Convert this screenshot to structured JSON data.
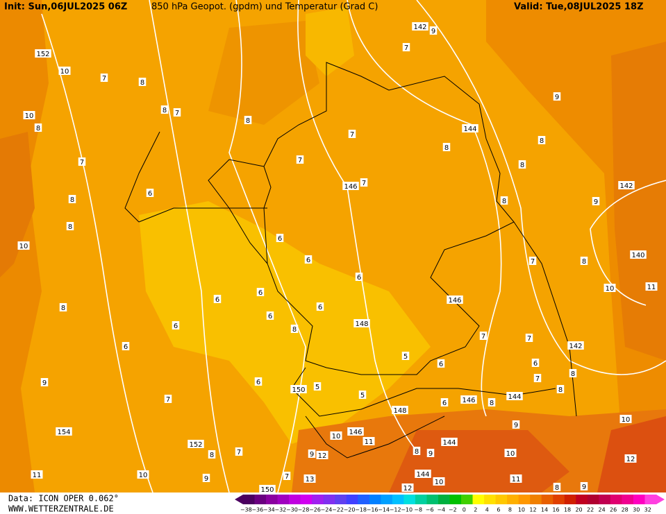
{
  "header": {
    "init": "Init: Sun,06JUL2025 06Z",
    "title": "850 hPa Geopot. (gpdm) und Temperatur (Grad C)",
    "valid": "Valid: Tue,08JUL2025 18Z"
  },
  "footer": {
    "data": "Data: ICON OPER 0.062°",
    "site": "WWW.WETTERZENTRALE.DE"
  },
  "legend": {
    "labels": [
      "−38",
      "−36",
      "−34",
      "−32",
      "−30",
      "−28",
      "−26",
      "−24",
      "−22",
      "−20",
      "−18",
      "−16",
      "−14",
      "−12",
      "−10",
      "−8",
      "−6",
      "−4",
      "−2",
      "0",
      "2",
      "4",
      "6",
      "8",
      "10",
      "12",
      "14",
      "16",
      "18",
      "20",
      "22",
      "24",
      "26",
      "28",
      "30",
      "32"
    ],
    "colors": [
      "#4b0060",
      "#6a0080",
      "#8a00a0",
      "#a000c0",
      "#c000e0",
      "#d000f0",
      "#a020f0",
      "#8030f0",
      "#6040f0",
      "#4040ff",
      "#2060ff",
      "#0080ff",
      "#00a0ff",
      "#00c0ff",
      "#00e0e0",
      "#00d0a0",
      "#00c070",
      "#00b040",
      "#00c000",
      "#40d000",
      "#ffff00",
      "#ffe000",
      "#ffc800",
      "#ffb000",
      "#ff9800",
      "#f08000",
      "#e86000",
      "#e04000",
      "#d02000",
      "#c00020",
      "#b00030",
      "#c00050",
      "#e00070",
      "#f00090",
      "#ff00c0",
      "#ff40e0"
    ]
  },
  "contour_labels": [
    142,
    152,
    10,
    7,
    8,
    10,
    8,
    7,
    8,
    8,
    7,
    9,
    9,
    144,
    7,
    8,
    8,
    7,
    8,
    7,
    146,
    7,
    142,
    6,
    8,
    8,
    9,
    8,
    6,
    10,
    6,
    7,
    8,
    140,
    10,
    11,
    6,
    6,
    6,
    146,
    8,
    6,
    6,
    6,
    148,
    8,
    6,
    7,
    7,
    142,
    5,
    6,
    6,
    8,
    6,
    150,
    5,
    9,
    7,
    8,
    7,
    5,
    146,
    144,
    6,
    8,
    148,
    154,
    10,
    146,
    9,
    10,
    11,
    144,
    152,
    8,
    7,
    9,
    12,
    8,
    9,
    10,
    12,
    11,
    10,
    9,
    144,
    10,
    13,
    7,
    11,
    150,
    12,
    8,
    9
  ]
}
